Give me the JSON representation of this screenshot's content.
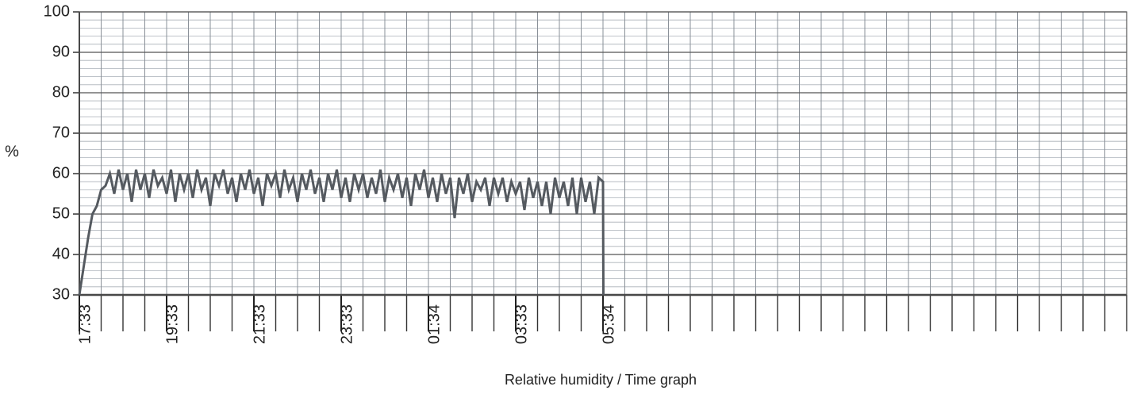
{
  "chart_data": {
    "type": "line",
    "title": "Relative humidity / Time graph",
    "y_label": "%",
    "x": [
      0,
      0.1,
      0.2,
      0.3,
      0.4,
      0.5,
      0.6,
      0.7,
      0.8,
      0.9,
      1,
      1.1,
      1.2,
      1.3,
      1.4,
      1.5,
      1.6,
      1.7,
      1.8,
      1.9,
      2,
      2.1,
      2.2,
      2.3,
      2.4,
      2.5,
      2.6,
      2.7,
      2.8,
      2.9,
      3,
      3.1,
      3.2,
      3.3,
      3.4,
      3.5,
      3.6,
      3.7,
      3.8,
      3.9,
      4,
      4.1,
      4.2,
      4.3,
      4.4,
      4.5,
      4.6,
      4.7,
      4.8,
      4.9,
      5,
      5.1,
      5.2,
      5.3,
      5.4,
      5.5,
      5.6,
      5.7,
      5.8,
      5.9,
      6,
      6.1,
      6.2,
      6.3,
      6.4,
      6.5,
      6.6,
      6.7,
      6.8,
      6.9,
      7,
      7.1,
      7.2,
      7.3,
      7.4,
      7.5,
      7.6,
      7.7,
      7.8,
      7.9,
      8,
      8.1,
      8.2,
      8.3,
      8.4,
      8.5,
      8.6,
      8.7,
      8.8,
      8.9,
      9,
      9.1,
      9.2,
      9.3,
      9.4,
      9.5,
      9.6,
      9.7,
      9.8,
      9.9,
      10,
      10.1,
      10.2,
      10.3,
      10.4,
      10.5,
      10.6,
      10.7,
      10.8,
      10.9,
      11,
      11.1,
      11.2,
      11.3,
      11.4,
      11.5,
      11.6,
      11.7,
      11.8,
      11.9,
      12,
      12.01
    ],
    "series": [
      {
        "color": "#555a60",
        "values": [
          30,
          37,
          44,
          50,
          52,
          56,
          57,
          60,
          55,
          61,
          56,
          60,
          53,
          61,
          56,
          60,
          54,
          61,
          57,
          59,
          55,
          61,
          53,
          60,
          56,
          60,
          54,
          61,
          56,
          59,
          52,
          60,
          57,
          61,
          55,
          59,
          53,
          60,
          56,
          61,
          55,
          59,
          52,
          60,
          57,
          60,
          54,
          61,
          56,
          59,
          53,
          60,
          56,
          61,
          55,
          59,
          53,
          60,
          56,
          61,
          54,
          59,
          53,
          60,
          56,
          60,
          54,
          59,
          55,
          61,
          53,
          59,
          56,
          60,
          54,
          59,
          52,
          60,
          56,
          61,
          54,
          59,
          53,
          60,
          55,
          59,
          49,
          59,
          55,
          60,
          53,
          58,
          56,
          59,
          52,
          59,
          55,
          59,
          53,
          58,
          55,
          58,
          51,
          59,
          54,
          58,
          52,
          58,
          50,
          59,
          54,
          58,
          52,
          59,
          50,
          59,
          53,
          58,
          50,
          59,
          58,
          30
        ]
      }
    ],
    "xlim": [
      0,
      24
    ],
    "xticks": [
      {
        "value": 0,
        "label": "17:33"
      },
      {
        "value": 2,
        "label": "19:33"
      },
      {
        "value": 4,
        "label": "21:33"
      },
      {
        "value": 6,
        "label": "23:33"
      },
      {
        "value": 8,
        "label": "01:34"
      },
      {
        "value": 10,
        "label": "03:33"
      },
      {
        "value": 12,
        "label": "05:34"
      }
    ],
    "ylim": [
      30,
      100
    ],
    "yticks": [
      30,
      40,
      50,
      60,
      70,
      80,
      90,
      100
    ],
    "grid": true
  }
}
